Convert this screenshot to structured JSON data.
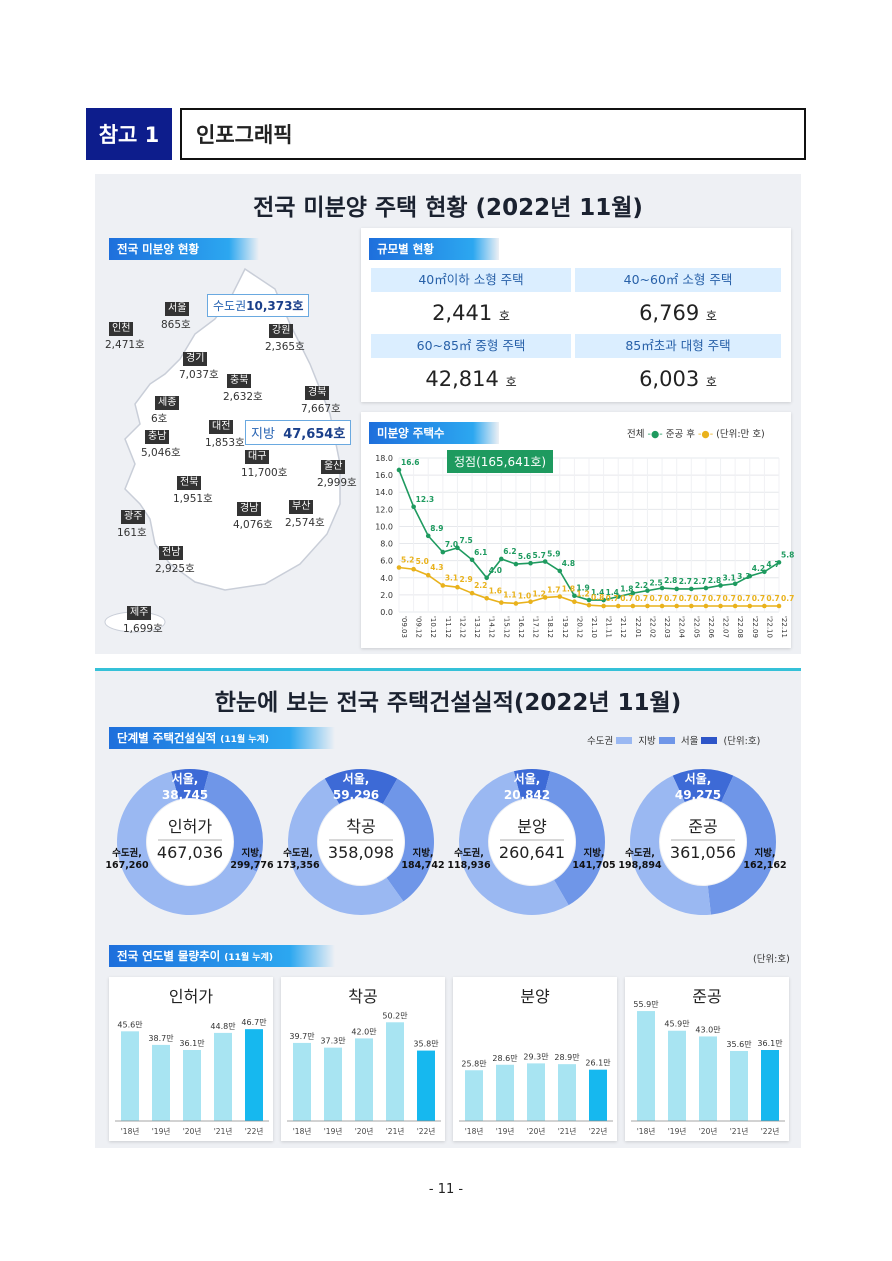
{
  "header": {
    "badge": "참고 1",
    "title": "인포그래픽"
  },
  "section1": {
    "title": "전국 미분양 주택 현황 (2022년 11월)",
    "map_tag": "전국 미분양 현황",
    "metro_label": "수도권",
    "metro_value": "10,373호",
    "local_label": "지방",
    "local_value": "47,654호",
    "regions": [
      {
        "name": "서울",
        "value": "865호"
      },
      {
        "name": "인천",
        "value": "2,471호"
      },
      {
        "name": "경기",
        "value": "7,037호"
      },
      {
        "name": "강원",
        "value": "2,365호"
      },
      {
        "name": "충북",
        "value": "2,632호"
      },
      {
        "name": "경북",
        "value": "7,667호"
      },
      {
        "name": "세종",
        "value": "6호"
      },
      {
        "name": "대전",
        "value": "1,853호"
      },
      {
        "name": "충남",
        "value": "5,046호"
      },
      {
        "name": "대구",
        "value": "11,700호"
      },
      {
        "name": "울산",
        "value": "2,999호"
      },
      {
        "name": "전북",
        "value": "1,951호"
      },
      {
        "name": "광주",
        "value": "161호"
      },
      {
        "name": "경남",
        "value": "4,076호"
      },
      {
        "name": "부산",
        "value": "2,574호"
      },
      {
        "name": "전남",
        "value": "2,925호"
      },
      {
        "name": "제주",
        "value": "1,699호"
      }
    ],
    "size_tag": "규모별 현황",
    "sizes": [
      {
        "label": "40㎡이하 소형 주택",
        "value": "2,441",
        "unit": "호"
      },
      {
        "label": "40~60㎡ 소형 주택",
        "value": "6,769",
        "unit": "호"
      },
      {
        "label": "60~85㎡ 중형 주택",
        "value": "42,814",
        "unit": "호"
      },
      {
        "label": "85㎡초과 대형 주택",
        "value": "6,003",
        "unit": "호"
      }
    ],
    "trend_tag": "미분양 주택수",
    "trend_legend_total": "전체",
    "trend_legend_after": "준공 후",
    "trend_unit": "(단위:만 호)",
    "peak_label": "정점(165,641호)",
    "colors": {
      "total": "#1e9a5f",
      "after": "#e9b21c",
      "map": "#ffffff",
      "accent": "#1e6fdc"
    }
  },
  "chart_data": [
    {
      "type": "line",
      "ylim": [
        0,
        18
      ],
      "yticks": [
        "0.0",
        "2.0",
        "4.0",
        "6.0",
        "8.0",
        "10.0",
        "12.0",
        "14.0",
        "16.0",
        "18.0"
      ],
      "x": [
        "'09.03",
        "'09.12",
        "'10.12",
        "'11.12",
        "'12.12",
        "'13.12",
        "'14.12",
        "'15.12",
        "'16.12",
        "'17.12",
        "'18.12",
        "'19.12",
        "'20.12",
        "'21.10",
        "'21.11",
        "'21.12",
        "'22.01",
        "'22.02",
        "'22.03",
        "'22.04",
        "'22.05",
        "'22.06",
        "'22.07",
        "'22.08",
        "'22.09",
        "'22.10",
        "'22.11"
      ],
      "series": [
        {
          "name": "전체",
          "values": [
            16.6,
            12.3,
            8.9,
            7.0,
            7.5,
            6.1,
            4.0,
            6.2,
            5.6,
            5.7,
            5.9,
            4.8,
            1.9,
            1.4,
            1.4,
            1.8,
            2.2,
            2.5,
            2.8,
            2.7,
            2.7,
            2.8,
            3.1,
            3.3,
            4.2,
            4.7,
            5.8
          ],
          "labels": [
            "16.6",
            "12.3",
            "8.9",
            "7.0",
            "7.5",
            "6.1",
            "4.0",
            "6.2",
            "5.6",
            "5.7",
            "5.9",
            "4.8",
            "1.9",
            "1.4",
            "1.4",
            "1.8",
            "2.2",
            "2.5",
            "2.8",
            "2.7",
            "2.7",
            "2.8",
            "3.1",
            "3.3",
            "4.2",
            "4.7",
            "5.8"
          ]
        },
        {
          "name": "준공 후",
          "values": [
            5.2,
            5.0,
            4.3,
            3.1,
            2.9,
            2.2,
            1.6,
            1.1,
            1.0,
            1.2,
            1.7,
            1.8,
            1.2,
            0.8,
            0.7,
            0.7,
            0.7,
            0.7,
            0.7,
            0.7,
            0.7,
            0.7,
            0.7,
            0.7,
            0.7,
            0.7,
            0.7
          ],
          "labels": [
            "5.2",
            "5.0",
            "4.3",
            "3.1",
            "2.9",
            "2.2",
            "1.6",
            "1.1",
            "1.0",
            "1.2",
            "1.7",
            "1.8",
            "1.2",
            "0.8",
            "0.7",
            "0.7",
            "0.7",
            "0.7",
            "0.7",
            "0.7",
            "0.7",
            "0.7",
            "0.7",
            "0.7",
            "0.7",
            "0.7",
            "0.7"
          ]
        }
      ]
    },
    {
      "type": "pie",
      "charts": [
        {
          "title": "인허가",
          "total": "467,036",
          "seoul": "38,745",
          "metro": "167,260",
          "local": "299,776",
          "v": [
            38745,
            128515,
            299776
          ]
        },
        {
          "title": "착공",
          "total": "358,098",
          "seoul": "59,296",
          "metro": "173,356",
          "local": "184,742",
          "v": [
            59296,
            114060,
            184742
          ]
        },
        {
          "title": "분양",
          "total": "260,641",
          "seoul": "20,842",
          "metro": "118,936",
          "local": "141,705",
          "v": [
            20842,
            98094,
            141705
          ]
        },
        {
          "title": "준공",
          "total": "361,056",
          "seoul": "49,275",
          "metro": "198,894",
          "local": "162,162",
          "v": [
            49275,
            149619,
            162162
          ]
        }
      ]
    },
    {
      "type": "bar",
      "categories": [
        "'18년",
        "'19년",
        "'20년",
        "'21년",
        "'22년"
      ],
      "charts": [
        {
          "title": "인허가",
          "values": [
            45.6,
            38.7,
            36.1,
            44.8,
            46.7
          ],
          "labels": [
            "45.6만",
            "38.7만",
            "36.1만",
            "44.8만",
            "46.7만"
          ]
        },
        {
          "title": "착공",
          "values": [
            39.7,
            37.3,
            42.0,
            50.2,
            35.8
          ],
          "labels": [
            "39.7만",
            "37.3만",
            "42.0만",
            "50.2만",
            "35.8만"
          ]
        },
        {
          "title": "분양",
          "values": [
            25.8,
            28.6,
            29.3,
            28.9,
            26.1
          ],
          "labels": [
            "25.8만",
            "28.6만",
            "29.3만",
            "28.9만",
            "26.1만"
          ]
        },
        {
          "title": "준공",
          "values": [
            55.9,
            45.9,
            43.0,
            35.6,
            36.1
          ],
          "labels": [
            "55.9만",
            "45.9만",
            "43.0만",
            "35.6만",
            "36.1만"
          ]
        }
      ]
    }
  ],
  "section2": {
    "title": "한눈에 보는 전국 주택건설실적(2022년 11월)",
    "stage_tag": "단계별 주택건설실적",
    "stage_tag_sub": "(11월 누계)",
    "legend_metro": "수도권",
    "legend_local": "지방",
    "legend_seoul": "서울",
    "legend_unit": "(단위:호)",
    "seoul_label": "서울,",
    "metro_label": "수도권,",
    "local_label": "지방,",
    "yearly_tag": "전국 연도별 물량추이",
    "yearly_tag_sub": "(11월 누계)",
    "yearly_unit": "(단위:호)",
    "colors": {
      "seoul": "#3d6ad6",
      "metro": "#6f96e8",
      "local": "#9ab8f2",
      "bar": "#a8e4f2",
      "bar_last": "#16b8ef"
    }
  },
  "page_number": "- 11 -"
}
